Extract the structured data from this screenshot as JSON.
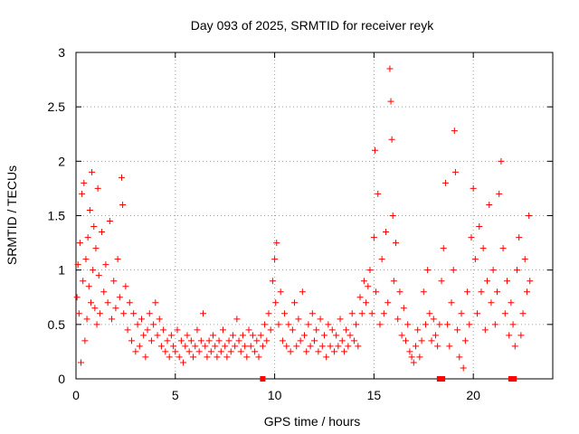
{
  "chart_data": {
    "type": "scatter",
    "title": "Day 093 of 2025, SRMTID for receiver reyk",
    "xlabel": "GPS time / hours",
    "ylabel": "SRMTID / TECUs",
    "xlim": [
      0,
      24
    ],
    "ylim": [
      0,
      3
    ],
    "xticks": [
      0,
      5,
      10,
      15,
      20
    ],
    "yticks": [
      0,
      0.5,
      1,
      1.5,
      2,
      2.5,
      3
    ],
    "xtick_labels": [
      "0",
      "5",
      "10",
      "15",
      "20"
    ],
    "ytick_labels": [
      "0",
      "0.5",
      "1",
      "1.5",
      "2",
      "2.5",
      "3"
    ],
    "grid": true,
    "marker": "+",
    "color": "#ff0000",
    "series": [
      {
        "name": "SRMTID",
        "marker": "+",
        "points": [
          [
            0.05,
            0.75
          ],
          [
            0.1,
            1.05
          ],
          [
            0.15,
            0.6
          ],
          [
            0.2,
            1.25
          ],
          [
            0.25,
            0.15
          ],
          [
            0.3,
            1.7
          ],
          [
            0.35,
            0.9
          ],
          [
            0.4,
            1.8
          ],
          [
            0.45,
            0.35
          ],
          [
            0.5,
            1.1
          ],
          [
            0.55,
            0.55
          ],
          [
            0.6,
            1.3
          ],
          [
            0.65,
            0.85
          ],
          [
            0.7,
            1.55
          ],
          [
            0.75,
            0.7
          ],
          [
            0.8,
            1.9
          ],
          [
            0.85,
            1.0
          ],
          [
            0.9,
            1.4
          ],
          [
            0.95,
            0.65
          ],
          [
            1.0,
            1.2
          ],
          [
            1.05,
            0.5
          ],
          [
            1.1,
            1.75
          ],
          [
            1.15,
            0.95
          ],
          [
            1.2,
            0.6
          ],
          [
            1.3,
            1.35
          ],
          [
            1.4,
            0.8
          ],
          [
            1.5,
            1.05
          ],
          [
            1.6,
            0.7
          ],
          [
            1.7,
            1.45
          ],
          [
            1.8,
            0.55
          ],
          [
            1.9,
            0.9
          ],
          [
            2.0,
            0.65
          ],
          [
            2.1,
            1.1
          ],
          [
            2.2,
            0.75
          ],
          [
            2.3,
            1.85
          ],
          [
            2.35,
            1.6
          ],
          [
            2.4,
            0.6
          ],
          [
            2.5,
            0.85
          ],
          [
            2.6,
            0.45
          ],
          [
            2.7,
            0.7
          ],
          [
            2.8,
            0.35
          ],
          [
            2.9,
            0.6
          ],
          [
            3.0,
            0.25
          ],
          [
            3.1,
            0.5
          ],
          [
            3.2,
            0.3
          ],
          [
            3.3,
            0.55
          ],
          [
            3.4,
            0.4
          ],
          [
            3.5,
            0.2
          ],
          [
            3.6,
            0.45
          ],
          [
            3.7,
            0.6
          ],
          [
            3.8,
            0.35
          ],
          [
            3.9,
            0.5
          ],
          [
            4.0,
            0.7
          ],
          [
            4.1,
            0.4
          ],
          [
            4.2,
            0.55
          ],
          [
            4.3,
            0.3
          ],
          [
            4.4,
            0.45
          ],
          [
            4.5,
            0.25
          ],
          [
            4.6,
            0.35
          ],
          [
            4.7,
            0.2
          ],
          [
            4.8,
            0.4
          ],
          [
            4.9,
            0.3
          ],
          [
            5.0,
            0.25
          ],
          [
            5.1,
            0.45
          ],
          [
            5.2,
            0.2
          ],
          [
            5.3,
            0.35
          ],
          [
            5.4,
            0.15
          ],
          [
            5.5,
            0.3
          ],
          [
            5.6,
            0.4
          ],
          [
            5.7,
            0.25
          ],
          [
            5.8,
            0.35
          ],
          [
            5.9,
            0.2
          ],
          [
            6.0,
            0.3
          ],
          [
            6.1,
            0.45
          ],
          [
            6.2,
            0.25
          ],
          [
            6.3,
            0.35
          ],
          [
            6.4,
            0.6
          ],
          [
            6.5,
            0.3
          ],
          [
            6.6,
            0.2
          ],
          [
            6.7,
            0.35
          ],
          [
            6.8,
            0.25
          ],
          [
            6.9,
            0.4
          ],
          [
            7.0,
            0.3
          ],
          [
            7.1,
            0.2
          ],
          [
            7.2,
            0.35
          ],
          [
            7.3,
            0.25
          ],
          [
            7.4,
            0.45
          ],
          [
            7.5,
            0.3
          ],
          [
            7.6,
            0.2
          ],
          [
            7.7,
            0.35
          ],
          [
            7.8,
            0.25
          ],
          [
            7.9,
            0.4
          ],
          [
            8.0,
            0.3
          ],
          [
            8.1,
            0.55
          ],
          [
            8.2,
            0.35
          ],
          [
            8.3,
            0.25
          ],
          [
            8.4,
            0.4
          ],
          [
            8.5,
            0.3
          ],
          [
            8.6,
            0.2
          ],
          [
            8.7,
            0.45
          ],
          [
            8.8,
            0.3
          ],
          [
            8.9,
            0.4
          ],
          [
            9.0,
            0.25
          ],
          [
            9.1,
            0.35
          ],
          [
            9.2,
            0.2
          ],
          [
            9.3,
            0.4
          ],
          [
            9.4,
            0.3
          ],
          [
            9.5,
            0.5
          ],
          [
            9.6,
            0.35
          ],
          [
            9.7,
            0.6
          ],
          [
            9.8,
            0.45
          ],
          [
            9.9,
            0.9
          ],
          [
            10.0,
            1.1
          ],
          [
            10.05,
            0.7
          ],
          [
            10.1,
            1.25
          ],
          [
            10.2,
            0.5
          ],
          [
            10.3,
            0.8
          ],
          [
            10.4,
            0.35
          ],
          [
            10.5,
            0.6
          ],
          [
            10.6,
            0.3
          ],
          [
            10.7,
            0.5
          ],
          [
            10.8,
            0.25
          ],
          [
            10.9,
            0.45
          ],
          [
            11.0,
            0.7
          ],
          [
            11.1,
            0.3
          ],
          [
            11.2,
            0.55
          ],
          [
            11.3,
            0.35
          ],
          [
            11.4,
            0.8
          ],
          [
            11.5,
            0.4
          ],
          [
            11.6,
            0.25
          ],
          [
            11.7,
            0.5
          ],
          [
            11.8,
            0.3
          ],
          [
            11.9,
            0.6
          ],
          [
            12.0,
            0.35
          ],
          [
            12.1,
            0.45
          ],
          [
            12.2,
            0.25
          ],
          [
            12.3,
            0.55
          ],
          [
            12.4,
            0.3
          ],
          [
            12.5,
            0.4
          ],
          [
            12.6,
            0.2
          ],
          [
            12.7,
            0.5
          ],
          [
            12.8,
            0.3
          ],
          [
            12.9,
            0.45
          ],
          [
            13.0,
            0.25
          ],
          [
            13.1,
            0.4
          ],
          [
            13.2,
            0.3
          ],
          [
            13.3,
            0.55
          ],
          [
            13.4,
            0.35
          ],
          [
            13.5,
            0.25
          ],
          [
            13.6,
            0.45
          ],
          [
            13.7,
            0.3
          ],
          [
            13.8,
            0.4
          ],
          [
            13.9,
            0.6
          ],
          [
            14.0,
            0.35
          ],
          [
            14.1,
            0.5
          ],
          [
            14.2,
            0.3
          ],
          [
            14.3,
            0.75
          ],
          [
            14.4,
            0.6
          ],
          [
            14.5,
            0.9
          ],
          [
            14.6,
            0.7
          ],
          [
            14.7,
            0.85
          ],
          [
            14.8,
            1.0
          ],
          [
            14.9,
            0.6
          ],
          [
            15.0,
            1.3
          ],
          [
            15.05,
            2.1
          ],
          [
            15.1,
            0.8
          ],
          [
            15.2,
            1.7
          ],
          [
            15.3,
            0.5
          ],
          [
            15.4,
            1.1
          ],
          [
            15.5,
            0.6
          ],
          [
            15.6,
            1.35
          ],
          [
            15.7,
            0.7
          ],
          [
            15.8,
            2.85
          ],
          [
            15.85,
            2.55
          ],
          [
            15.9,
            2.2
          ],
          [
            15.95,
            1.5
          ],
          [
            16.0,
            0.9
          ],
          [
            16.1,
            1.25
          ],
          [
            16.2,
            0.55
          ],
          [
            16.3,
            0.8
          ],
          [
            16.4,
            0.4
          ],
          [
            16.5,
            0.65
          ],
          [
            16.6,
            0.35
          ],
          [
            16.7,
            0.5
          ],
          [
            16.8,
            0.25
          ],
          [
            16.9,
            0.2
          ],
          [
            17.0,
            0.15
          ],
          [
            17.1,
            0.3
          ],
          [
            17.2,
            0.45
          ],
          [
            17.3,
            0.2
          ],
          [
            17.4,
            0.35
          ],
          [
            17.5,
            0.8
          ],
          [
            17.6,
            0.5
          ],
          [
            17.7,
            1.0
          ],
          [
            17.8,
            0.6
          ],
          [
            17.9,
            0.35
          ],
          [
            18.0,
            0.55
          ],
          [
            18.1,
            0.4
          ],
          [
            18.2,
            0.3
          ],
          [
            18.3,
            0.5
          ],
          [
            18.4,
            0.9
          ],
          [
            18.5,
            1.2
          ],
          [
            18.6,
            1.8
          ],
          [
            18.7,
            0.5
          ],
          [
            18.8,
            0.3
          ],
          [
            18.9,
            0.7
          ],
          [
            19.0,
            1.0
          ],
          [
            19.05,
            2.28
          ],
          [
            19.1,
            1.9
          ],
          [
            19.2,
            0.45
          ],
          [
            19.3,
            0.2
          ],
          [
            19.4,
            0.6
          ],
          [
            19.5,
            0.1
          ],
          [
            19.6,
            0.35
          ],
          [
            19.7,
            0.8
          ],
          [
            19.8,
            0.5
          ],
          [
            19.9,
            1.3
          ],
          [
            20.0,
            1.75
          ],
          [
            20.1,
            1.1
          ],
          [
            20.2,
            0.6
          ],
          [
            20.3,
            1.4
          ],
          [
            20.4,
            0.8
          ],
          [
            20.5,
            1.2
          ],
          [
            20.6,
            0.45
          ],
          [
            20.7,
            0.9
          ],
          [
            20.8,
            1.6
          ],
          [
            20.9,
            0.7
          ],
          [
            21.0,
            1.0
          ],
          [
            21.1,
            0.5
          ],
          [
            21.2,
            0.8
          ],
          [
            21.3,
            1.7
          ],
          [
            21.4,
            2.0
          ],
          [
            21.5,
            1.2
          ],
          [
            21.6,
            0.6
          ],
          [
            21.7,
            0.9
          ],
          [
            21.8,
            0.4
          ],
          [
            21.9,
            0.7
          ],
          [
            22.0,
            0.5
          ],
          [
            22.1,
            0.3
          ],
          [
            22.2,
            1.0
          ],
          [
            22.3,
            1.3
          ],
          [
            22.4,
            0.4
          ],
          [
            22.5,
            0.6
          ],
          [
            22.6,
            1.1
          ],
          [
            22.7,
            0.8
          ],
          [
            22.8,
            1.5
          ],
          [
            22.85,
            0.9
          ]
        ]
      },
      {
        "name": "gaps",
        "marker": "square",
        "points": [
          [
            9.4,
            0
          ],
          [
            18.3,
            0
          ],
          [
            18.45,
            0
          ],
          [
            21.9,
            0
          ],
          [
            22.05,
            0
          ]
        ]
      }
    ]
  }
}
